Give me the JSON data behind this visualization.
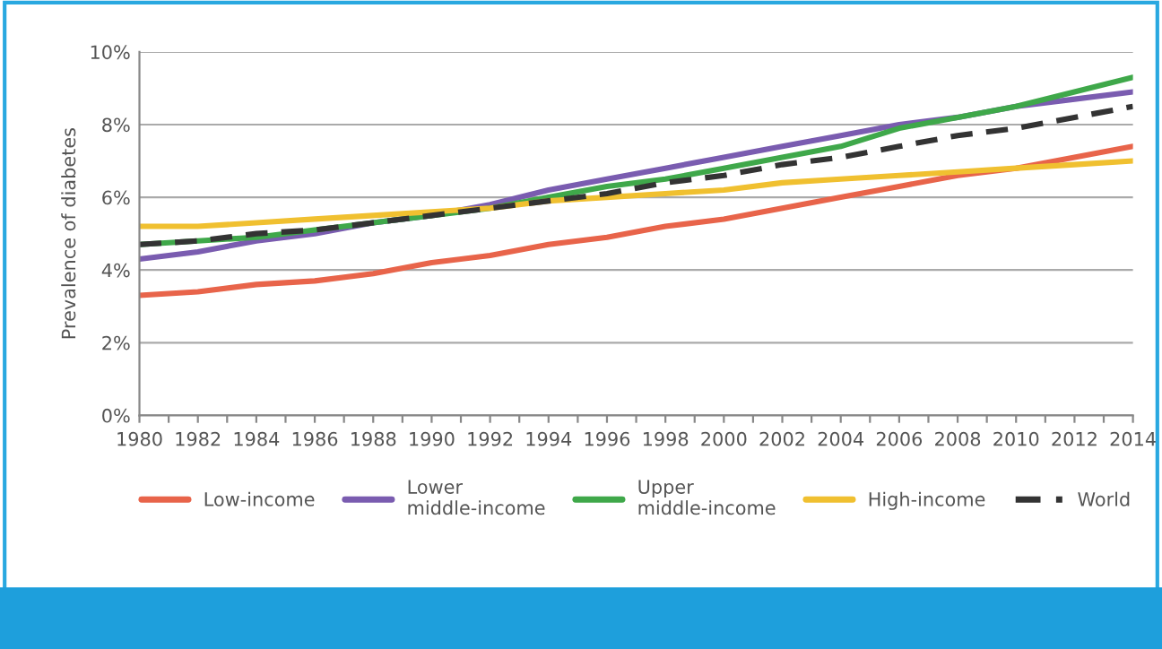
{
  "chart_data": {
    "type": "line",
    "ylabel": "Prevalence of diabetes",
    "x": [
      1980,
      1982,
      1984,
      1986,
      1988,
      1990,
      1992,
      1994,
      1996,
      1998,
      2000,
      2002,
      2004,
      2006,
      2008,
      2010,
      2012,
      2014
    ],
    "series": [
      {
        "name": "Low-income",
        "color": "#e8644a",
        "values": [
          3.3,
          3.4,
          3.6,
          3.7,
          3.9,
          4.2,
          4.4,
          4.7,
          4.9,
          5.2,
          5.4,
          5.7,
          6.0,
          6.3,
          6.6,
          6.8,
          7.1,
          7.4
        ]
      },
      {
        "name": "Lower\nmiddle-income",
        "color": "#7a5cb0",
        "values": [
          4.3,
          4.5,
          4.8,
          5.0,
          5.3,
          5.5,
          5.8,
          6.2,
          6.5,
          6.8,
          7.1,
          7.4,
          7.7,
          8.0,
          8.2,
          8.5,
          8.7,
          8.9
        ]
      },
      {
        "name": "Upper\nmiddle-income",
        "color": "#3fa84a",
        "values": [
          4.7,
          4.8,
          4.9,
          5.1,
          5.3,
          5.5,
          5.7,
          6.0,
          6.3,
          6.5,
          6.8,
          7.1,
          7.4,
          7.9,
          8.2,
          8.5,
          8.9,
          9.3
        ]
      },
      {
        "name": "High-income",
        "color": "#f0c030",
        "values": [
          5.2,
          5.2,
          5.3,
          5.4,
          5.5,
          5.6,
          5.7,
          5.9,
          6.0,
          6.1,
          6.2,
          6.4,
          6.5,
          6.6,
          6.7,
          6.8,
          6.9,
          7.0
        ]
      },
      {
        "name": "World",
        "color": "#333333",
        "line_style": "dashed",
        "values": [
          4.7,
          4.8,
          5.0,
          5.1,
          5.3,
          5.5,
          5.7,
          5.9,
          6.1,
          6.4,
          6.6,
          6.9,
          7.1,
          7.4,
          7.7,
          7.9,
          8.2,
          8.5
        ]
      }
    ],
    "xlim": [
      1980,
      2014
    ],
    "xticks": [
      1980,
      {
        "value": 1981,
        "label": null
      },
      1982,
      {
        "value": 1983,
        "label": null
      },
      1984,
      {
        "value": 1985,
        "label": null
      },
      1986,
      {
        "value": 1987,
        "label": null
      },
      1988,
      {
        "value": 1989,
        "label": null
      },
      1990,
      {
        "value": 1991,
        "label": null
      },
      1992,
      {
        "value": 1993,
        "label": null
      },
      1994,
      {
        "value": 1995,
        "label": null
      },
      1996,
      {
        "value": 1997,
        "label": null
      },
      1998,
      {
        "value": 1999,
        "label": null
      },
      2000,
      {
        "value": 2001,
        "label": null
      },
      2002,
      {
        "value": 2003,
        "label": null
      },
      2004,
      {
        "value": 2005,
        "label": null
      },
      2006,
      {
        "value": 2007,
        "label": null
      },
      2008,
      {
        "value": 2009,
        "label": null
      },
      2010,
      {
        "value": 2011,
        "label": null
      },
      2012,
      {
        "value": 2013,
        "label": null
      },
      2014
    ],
    "ylim": [
      0,
      10
    ],
    "yticks": [
      {
        "value": 0,
        "label": "0%"
      },
      {
        "value": 2,
        "label": "2%"
      },
      {
        "value": 4,
        "label": "4%"
      },
      {
        "value": 6,
        "label": "6%"
      },
      {
        "value": 8,
        "label": "8%"
      },
      {
        "value": 10,
        "label": "10%"
      }
    ],
    "grid": "y",
    "legend": "bottom",
    "marker": "none",
    "line_style": "solid"
  }
}
